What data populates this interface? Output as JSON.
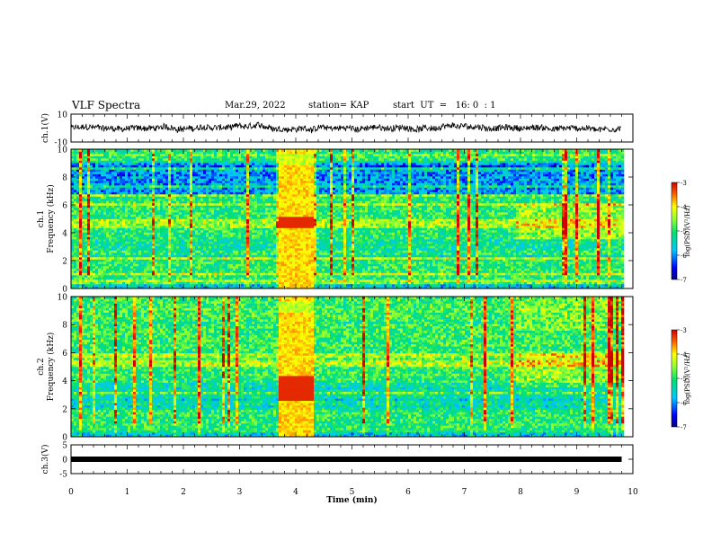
{
  "header": {
    "title": "VLF Spectra",
    "date": "Mar.29, 2022",
    "station": "station= KAP",
    "start": "start  UT  =   16: 0  : 1"
  },
  "chart_data": [
    {
      "type": "line",
      "id": "ch1-waveform",
      "ylabel": "ch.1(V)",
      "ylim": [
        -10,
        10
      ],
      "yticks": [
        "10",
        "-10"
      ],
      "xlim": [
        0,
        10
      ],
      "data_extent_min": 9.8,
      "series": [
        {
          "style": "noisy waveform",
          "mean": 0,
          "amplitude": 5
        }
      ]
    },
    {
      "type": "heatmap",
      "id": "ch1-spectrogram",
      "ylabel": "ch.1\nFrequency (kHz)",
      "ylim": [
        0,
        10
      ],
      "yticks": [
        "0",
        "2",
        "4",
        "6",
        "8",
        "10"
      ],
      "xlim": [
        0,
        10
      ],
      "data_extent_min": 9.8,
      "colorbar": {
        "label": "log(PSD)(V²/Hz)",
        "range": [
          -7,
          -3
        ],
        "ticks": [
          "-3",
          "-4",
          "-5",
          "-6",
          "-7"
        ]
      },
      "features": {
        "burst_min": [
          3.65,
          4.3
        ],
        "blue_band_khz": [
          6.8,
          9.0
        ],
        "orange_band_khz": [
          4.4,
          5.0
        ],
        "late_enhancement_min": [
          7.9,
          9.8
        ]
      }
    },
    {
      "type": "heatmap",
      "id": "ch2-spectrogram",
      "ylabel": "ch.2\nFrequency (kHz)",
      "ylim": [
        0,
        10
      ],
      "yticks": [
        "0",
        "2",
        "4",
        "6",
        "8",
        "10"
      ],
      "xlim": [
        0,
        10
      ],
      "data_extent_min": 9.8,
      "colorbar": {
        "label": "log(PSD)(V²/Hz)",
        "range": [
          -7,
          -3
        ],
        "ticks": [
          "-3",
          "-4",
          "-5",
          "-6",
          "-7"
        ]
      },
      "features": {
        "burst_min": [
          3.65,
          4.3
        ],
        "orange_band_khz": [
          5.0,
          6.0
        ],
        "late_enhancement_min": [
          7.9,
          9.8
        ]
      }
    },
    {
      "type": "line",
      "id": "ch3-signal",
      "ylabel": "ch.3(V)",
      "ylim": [
        -5,
        5
      ],
      "yticks": [
        "5",
        "0",
        "-5"
      ],
      "xlim": [
        0,
        10
      ],
      "xlabel": "Time  (min)",
      "xticks": [
        "0",
        "1",
        "2",
        "3",
        "4",
        "5",
        "6",
        "7",
        "8",
        "9",
        "10"
      ],
      "series": [
        {
          "style": "thick flat band",
          "value": 0,
          "x_end": 9.8
        }
      ]
    }
  ]
}
